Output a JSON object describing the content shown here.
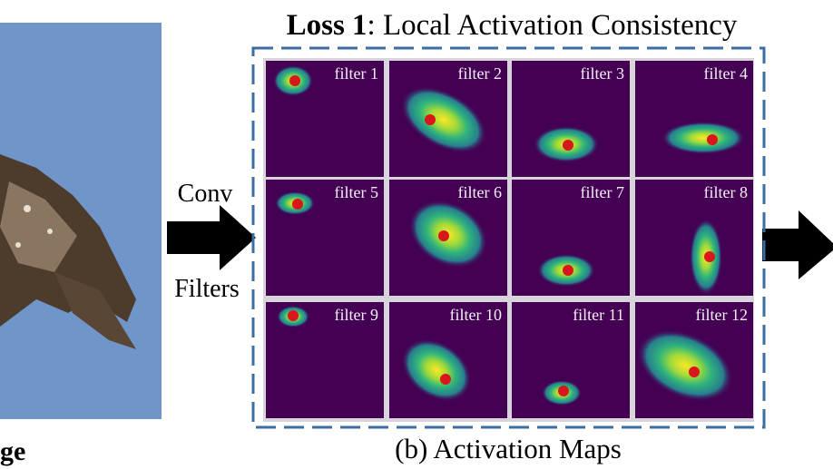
{
  "title": {
    "bold": "Loss 1",
    "rest": ": Local Activation Consistency"
  },
  "left_caption": "ge",
  "arrow_labels": {
    "top": "Conv",
    "bottom": "Filters"
  },
  "filters": [
    "filter 1",
    "filter 2",
    "filter 3",
    "filter 4",
    "filter 5",
    "filter 6",
    "filter 7",
    "filter 8",
    "filter 9",
    "filter 10",
    "filter 11",
    "filter 12"
  ],
  "caption": "(b) Activation Maps"
}
